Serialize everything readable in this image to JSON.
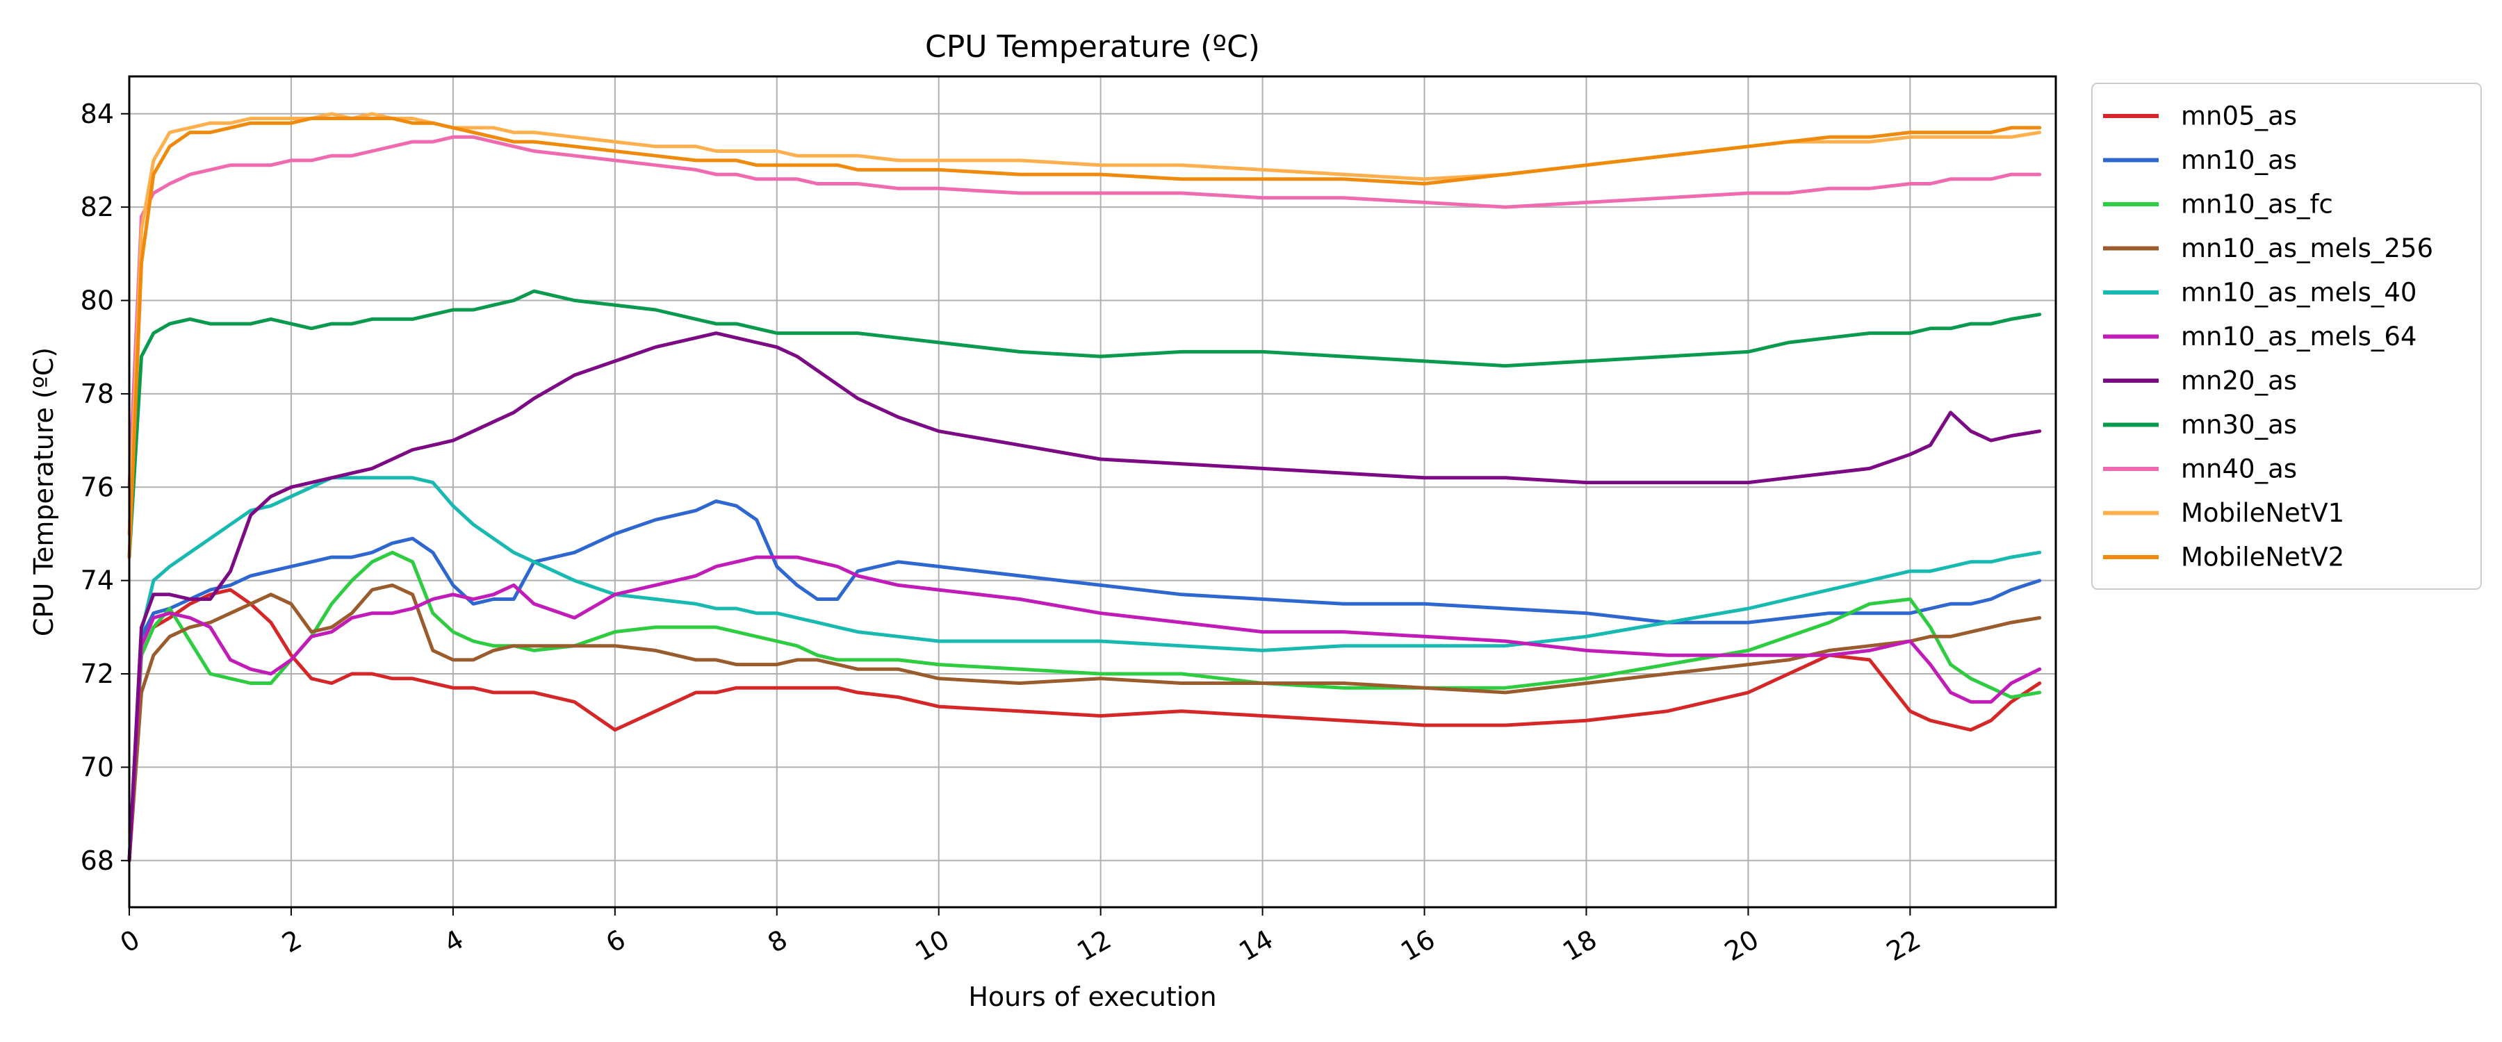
{
  "chart_data": {
    "type": "line",
    "title": "CPU Temperature (ºC)",
    "xlabel": "Hours of execution",
    "ylabel": "CPU Temperature (ºC)",
    "xlim": [
      0,
      23.8
    ],
    "ylim": [
      67,
      84.8
    ],
    "xticks": [
      0,
      2,
      4,
      6,
      8,
      10,
      12,
      14,
      16,
      18,
      20,
      22
    ],
    "yticks": [
      68,
      70,
      72,
      74,
      76,
      78,
      80,
      82,
      84
    ],
    "grid": true,
    "legend_position": "outside-right",
    "x": [
      0,
      0.15,
      0.3,
      0.5,
      0.75,
      1,
      1.25,
      1.5,
      1.75,
      2,
      2.25,
      2.5,
      2.75,
      3,
      3.25,
      3.5,
      3.75,
      4,
      4.25,
      4.5,
      4.75,
      5,
      5.5,
      6,
      6.5,
      7,
      7.25,
      7.5,
      7.75,
      8,
      8.25,
      8.5,
      8.75,
      9,
      9.5,
      10,
      11,
      12,
      13,
      14,
      15,
      16,
      17,
      18,
      19,
      20,
      20.5,
      21,
      21.5,
      22,
      22.25,
      22.5,
      22.75,
      23,
      23.25,
      23.6
    ],
    "series": [
      {
        "name": "mn05_as",
        "color": "#d62728",
        "values": [
          68,
          72.4,
          73.0,
          73.2,
          73.5,
          73.7,
          73.8,
          73.5,
          73.1,
          72.4,
          71.9,
          71.8,
          72.0,
          72.0,
          71.9,
          71.9,
          71.8,
          71.7,
          71.7,
          71.6,
          71.6,
          71.6,
          71.4,
          70.8,
          71.2,
          71.6,
          71.6,
          71.7,
          71.7,
          71.7,
          71.7,
          71.7,
          71.7,
          71.6,
          71.5,
          71.3,
          71.2,
          71.1,
          71.2,
          71.1,
          71.0,
          70.9,
          70.9,
          71.0,
          71.2,
          71.6,
          72.0,
          72.4,
          72.3,
          71.2,
          71.0,
          70.9,
          70.8,
          71.0,
          71.4,
          71.8
        ]
      },
      {
        "name": "mn10_as",
        "color": "#2f67d0",
        "values": [
          68,
          72.8,
          73.3,
          73.4,
          73.6,
          73.8,
          73.9,
          74.1,
          74.2,
          74.3,
          74.4,
          74.5,
          74.5,
          74.6,
          74.8,
          74.9,
          74.6,
          73.9,
          73.5,
          73.6,
          73.6,
          74.4,
          74.6,
          75.0,
          75.3,
          75.5,
          75.7,
          75.6,
          75.3,
          74.3,
          73.9,
          73.6,
          73.6,
          74.2,
          74.4,
          74.3,
          74.1,
          73.9,
          73.7,
          73.6,
          73.5,
          73.5,
          73.4,
          73.3,
          73.1,
          73.1,
          73.2,
          73.3,
          73.3,
          73.3,
          73.4,
          73.5,
          73.5,
          73.6,
          73.8,
          74.0
        ]
      },
      {
        "name": "mn10_as_fc",
        "color": "#2ecc40",
        "values": [
          68,
          72.4,
          73.0,
          73.4,
          72.7,
          72.0,
          71.9,
          71.8,
          71.8,
          72.3,
          72.8,
          73.5,
          74.0,
          74.4,
          74.6,
          74.4,
          73.3,
          72.9,
          72.7,
          72.6,
          72.6,
          72.5,
          72.6,
          72.9,
          73.0,
          73.0,
          73.0,
          72.9,
          72.8,
          72.7,
          72.6,
          72.4,
          72.3,
          72.3,
          72.3,
          72.2,
          72.1,
          72.0,
          72.0,
          71.8,
          71.7,
          71.7,
          71.7,
          71.9,
          72.2,
          72.5,
          72.8,
          73.1,
          73.5,
          73.6,
          73.0,
          72.2,
          71.9,
          71.7,
          71.5,
          71.6
        ]
      },
      {
        "name": "mn10_as_mels_256",
        "color": "#9a5b2d",
        "values": [
          68,
          71.6,
          72.4,
          72.8,
          73.0,
          73.1,
          73.3,
          73.5,
          73.7,
          73.5,
          72.9,
          73.0,
          73.3,
          73.8,
          73.9,
          73.7,
          72.5,
          72.3,
          72.3,
          72.5,
          72.6,
          72.6,
          72.6,
          72.6,
          72.5,
          72.3,
          72.3,
          72.2,
          72.2,
          72.2,
          72.3,
          72.3,
          72.2,
          72.1,
          72.1,
          71.9,
          71.8,
          71.9,
          71.8,
          71.8,
          71.8,
          71.7,
          71.6,
          71.8,
          72.0,
          72.2,
          72.3,
          72.5,
          72.6,
          72.7,
          72.8,
          72.8,
          72.9,
          73.0,
          73.1,
          73.2
        ]
      },
      {
        "name": "mn10_as_mels_40",
        "color": "#17b9b0",
        "values": [
          68,
          72.9,
          74.0,
          74.3,
          74.6,
          74.9,
          75.2,
          75.5,
          75.6,
          75.8,
          76.0,
          76.2,
          76.2,
          76.2,
          76.2,
          76.2,
          76.1,
          75.6,
          75.2,
          74.9,
          74.6,
          74.4,
          74.0,
          73.7,
          73.6,
          73.5,
          73.4,
          73.4,
          73.3,
          73.3,
          73.2,
          73.1,
          73.0,
          72.9,
          72.8,
          72.7,
          72.7,
          72.7,
          72.6,
          72.5,
          72.6,
          72.6,
          72.6,
          72.8,
          73.1,
          73.4,
          73.6,
          73.8,
          74.0,
          74.2,
          74.2,
          74.3,
          74.4,
          74.4,
          74.5,
          74.6
        ]
      },
      {
        "name": "mn10_as_mels_64",
        "color": "#c21cb8",
        "values": [
          68,
          72.6,
          73.2,
          73.3,
          73.2,
          73.0,
          72.3,
          72.1,
          72.0,
          72.3,
          72.8,
          72.9,
          73.2,
          73.3,
          73.3,
          73.4,
          73.6,
          73.7,
          73.6,
          73.7,
          73.9,
          73.5,
          73.2,
          73.7,
          73.9,
          74.1,
          74.3,
          74.4,
          74.5,
          74.5,
          74.5,
          74.4,
          74.3,
          74.1,
          73.9,
          73.8,
          73.6,
          73.3,
          73.1,
          72.9,
          72.9,
          72.8,
          72.7,
          72.5,
          72.4,
          72.4,
          72.4,
          72.4,
          72.5,
          72.7,
          72.2,
          71.6,
          71.4,
          71.4,
          71.8,
          72.1
        ]
      },
      {
        "name": "mn20_as",
        "color": "#7d0a85",
        "values": [
          68,
          73.0,
          73.7,
          73.7,
          73.6,
          73.6,
          74.2,
          75.4,
          75.8,
          76.0,
          76.1,
          76.2,
          76.3,
          76.4,
          76.6,
          76.8,
          76.9,
          77.0,
          77.2,
          77.4,
          77.6,
          77.9,
          78.4,
          78.7,
          79.0,
          79.2,
          79.3,
          79.2,
          79.1,
          79.0,
          78.8,
          78.5,
          78.2,
          77.9,
          77.5,
          77.2,
          76.9,
          76.6,
          76.5,
          76.4,
          76.3,
          76.2,
          76.2,
          76.1,
          76.1,
          76.1,
          76.2,
          76.3,
          76.4,
          76.7,
          76.9,
          77.6,
          77.2,
          77.0,
          77.1,
          77.2
        ]
      },
      {
        "name": "mn30_as",
        "color": "#0a9a4e",
        "values": [
          74.5,
          78.8,
          79.3,
          79.5,
          79.6,
          79.5,
          79.5,
          79.5,
          79.6,
          79.5,
          79.4,
          79.5,
          79.5,
          79.6,
          79.6,
          79.6,
          79.7,
          79.8,
          79.8,
          79.9,
          80.0,
          80.2,
          80.0,
          79.9,
          79.8,
          79.6,
          79.5,
          79.5,
          79.4,
          79.3,
          79.3,
          79.3,
          79.3,
          79.3,
          79.2,
          79.1,
          78.9,
          78.8,
          78.9,
          78.9,
          78.8,
          78.7,
          78.6,
          78.7,
          78.8,
          78.9,
          79.1,
          79.2,
          79.3,
          79.3,
          79.4,
          79.4,
          79.5,
          79.5,
          79.6,
          79.7
        ]
      },
      {
        "name": "mn40_as",
        "color": "#f06ab0",
        "values": [
          76,
          81.8,
          82.3,
          82.5,
          82.7,
          82.8,
          82.9,
          82.9,
          82.9,
          83.0,
          83.0,
          83.1,
          83.1,
          83.2,
          83.3,
          83.4,
          83.4,
          83.5,
          83.5,
          83.4,
          83.3,
          83.2,
          83.1,
          83.0,
          82.9,
          82.8,
          82.7,
          82.7,
          82.6,
          82.6,
          82.6,
          82.5,
          82.5,
          82.5,
          82.4,
          82.4,
          82.3,
          82.3,
          82.3,
          82.2,
          82.2,
          82.1,
          82.0,
          82.1,
          82.2,
          82.3,
          82.3,
          82.4,
          82.4,
          82.5,
          82.5,
          82.6,
          82.6,
          82.6,
          82.7,
          82.7
        ]
      },
      {
        "name": "MobileNetV1",
        "color": "#ffb04e",
        "values": [
          75,
          81.5,
          83.0,
          83.6,
          83.7,
          83.8,
          83.8,
          83.9,
          83.9,
          83.9,
          83.9,
          84.0,
          83.9,
          84.0,
          83.9,
          83.9,
          83.8,
          83.7,
          83.7,
          83.7,
          83.6,
          83.6,
          83.5,
          83.4,
          83.3,
          83.3,
          83.2,
          83.2,
          83.2,
          83.2,
          83.1,
          83.1,
          83.1,
          83.1,
          83.0,
          83.0,
          83.0,
          82.9,
          82.9,
          82.8,
          82.7,
          82.6,
          82.7,
          82.9,
          83.1,
          83.3,
          83.4,
          83.4,
          83.4,
          83.5,
          83.5,
          83.5,
          83.5,
          83.5,
          83.5,
          83.6
        ]
      },
      {
        "name": "MobileNetV2",
        "color": "#ef8a0c",
        "values": [
          74.5,
          80.8,
          82.7,
          83.3,
          83.6,
          83.6,
          83.7,
          83.8,
          83.8,
          83.8,
          83.9,
          83.9,
          83.9,
          83.9,
          83.9,
          83.8,
          83.8,
          83.7,
          83.6,
          83.5,
          83.4,
          83.4,
          83.3,
          83.2,
          83.1,
          83.0,
          83.0,
          83.0,
          82.9,
          82.9,
          82.9,
          82.9,
          82.9,
          82.8,
          82.8,
          82.8,
          82.7,
          82.7,
          82.6,
          82.6,
          82.6,
          82.5,
          82.7,
          82.9,
          83.1,
          83.3,
          83.4,
          83.5,
          83.5,
          83.6,
          83.6,
          83.6,
          83.6,
          83.6,
          83.7,
          83.7
        ]
      }
    ]
  }
}
